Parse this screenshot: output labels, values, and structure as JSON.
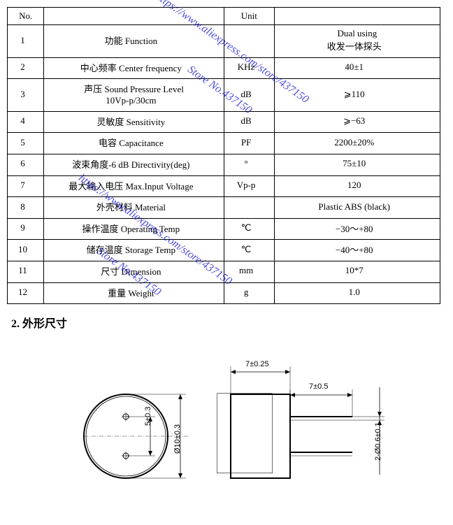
{
  "table": {
    "header": {
      "no": "No.",
      "desc": "",
      "unit": "Unit",
      "val": ""
    },
    "rows": [
      {
        "no": "1",
        "desc": "功能 Function",
        "unit": "",
        "val": "Dual using\n收发一体探头"
      },
      {
        "no": "2",
        "desc": "中心频率 Center frequency",
        "unit": "KHz",
        "val": "40±1"
      },
      {
        "no": "3",
        "desc": "声压 Sound Pressure Level\n10Vp-p/30cm",
        "unit": "dB",
        "val": "⩾110"
      },
      {
        "no": "4",
        "desc": "灵敏度 Sensitivity",
        "unit": "dB",
        "val": "⩾−63"
      },
      {
        "no": "5",
        "desc": "电容 Capacitance",
        "unit": "PF",
        "val": "2200±20%"
      },
      {
        "no": "6",
        "desc": "波束角度-6 dB Directivity(deg)",
        "unit": "°",
        "val": "75±10"
      },
      {
        "no": "7",
        "desc": "最大输入电压 Max.Input Voltage",
        "unit": "Vp-p",
        "val": "120"
      },
      {
        "no": "8",
        "desc": "外壳材料 Material",
        "unit": "",
        "val": "Plastic ABS (black)"
      },
      {
        "no": "9",
        "desc": "操作温度 Operating Temp",
        "unit": "℃",
        "val": "−30～+80"
      },
      {
        "no": "10",
        "desc": "储存温度 Storage Temp",
        "unit": "℃",
        "val": "−40～+80"
      },
      {
        "no": "11",
        "desc": "尺寸 Dimension",
        "unit": "mm",
        "val": "10*7"
      },
      {
        "no": "12",
        "desc": "重量 Weight",
        "unit": "g",
        "val": "1.0"
      }
    ]
  },
  "section_heading": "2. 外形尺寸",
  "diagram": {
    "dims": {
      "pin_pitch": "5±0.3",
      "diameter": "Ø10±0.3",
      "top_width": "7±0.25",
      "lead_length": "7±0.5",
      "lead_dia": "2-Ø0.6±0.1"
    }
  },
  "watermark": {
    "url": "https://www.aliexpress.com/store/437150",
    "store": "Store No.437150"
  }
}
